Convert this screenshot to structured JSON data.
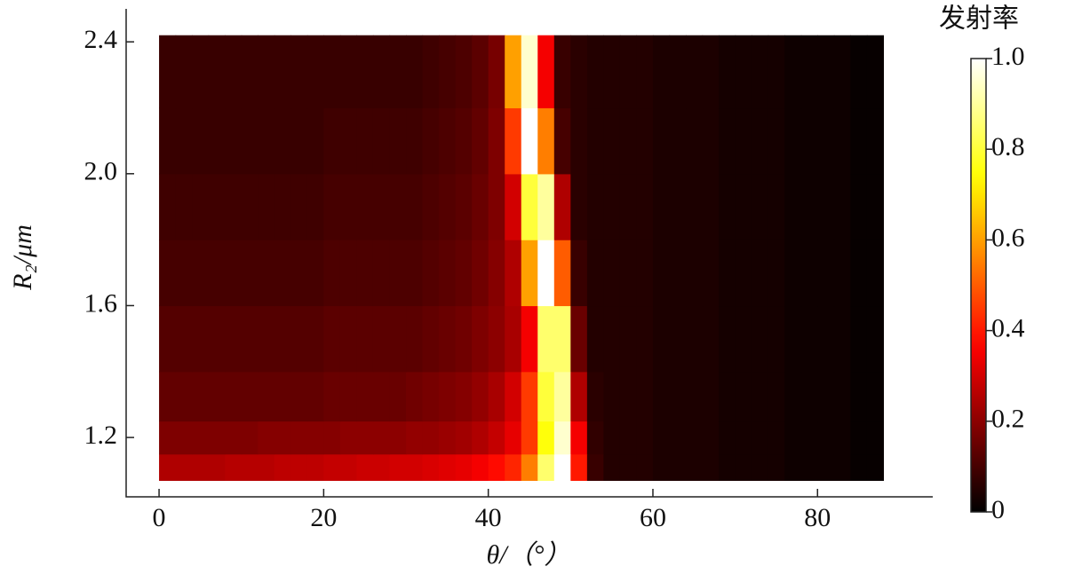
{
  "chart_data": {
    "type": "heatmap",
    "x_label": "θ/（°）",
    "y_label": "R₂/μm",
    "colorbar_title": "发射率",
    "colormap": "hot",
    "xlim": [
      -4,
      94
    ],
    "ylim": [
      1.02,
      2.5
    ],
    "xticks": [
      0,
      20,
      40,
      60,
      80
    ],
    "yticks": [
      1.2,
      1.6,
      {
        "value": 2,
        "label": "2.0"
      },
      2.4
    ],
    "clim": [
      0,
      1
    ],
    "cticks": [
      0,
      0.2,
      0.4,
      0.6,
      0.8,
      {
        "value": 1,
        "label": "1.0"
      }
    ],
    "x_edges": [
      0,
      2,
      4,
      6,
      8,
      10,
      12,
      14,
      16,
      18,
      20,
      22,
      24,
      26,
      28,
      30,
      32,
      34,
      36,
      38,
      40,
      42,
      44,
      46,
      48,
      50,
      52,
      54,
      56,
      58,
      60,
      62,
      64,
      66,
      68,
      70,
      72,
      74,
      76,
      78,
      80,
      82,
      84,
      86,
      88
    ],
    "y_edges": [
      1.07,
      1.15,
      1.25,
      1.4,
      1.6,
      1.8,
      2.0,
      2.2,
      2.42
    ],
    "z": [
      [
        0.25,
        0.25,
        0.25,
        0.25,
        0.26,
        0.26,
        0.26,
        0.27,
        0.27,
        0.27,
        0.28,
        0.28,
        0.29,
        0.29,
        0.3,
        0.3,
        0.31,
        0.32,
        0.33,
        0.35,
        0.38,
        0.42,
        0.55,
        0.85,
        1.0,
        0.4,
        0.08,
        0.05,
        0.05,
        0.05,
        0.04,
        0.04,
        0.04,
        0.04,
        0.03,
        0.03,
        0.03,
        0.03,
        0.02,
        0.02,
        0.02,
        0.02,
        0.01,
        0.01
      ],
      [
        0.18,
        0.18,
        0.18,
        0.18,
        0.18,
        0.18,
        0.19,
        0.19,
        0.19,
        0.19,
        0.19,
        0.2,
        0.2,
        0.2,
        0.2,
        0.21,
        0.21,
        0.22,
        0.23,
        0.25,
        0.28,
        0.33,
        0.45,
        0.75,
        0.95,
        0.35,
        0.07,
        0.05,
        0.05,
        0.05,
        0.04,
        0.04,
        0.04,
        0.04,
        0.03,
        0.03,
        0.03,
        0.03,
        0.02,
        0.02,
        0.02,
        0.02,
        0.01,
        0.01
      ],
      [
        0.14,
        0.14,
        0.14,
        0.14,
        0.14,
        0.14,
        0.14,
        0.14,
        0.14,
        0.14,
        0.15,
        0.15,
        0.15,
        0.15,
        0.15,
        0.16,
        0.17,
        0.18,
        0.19,
        0.21,
        0.24,
        0.3,
        0.45,
        0.8,
        0.9,
        0.25,
        0.06,
        0.05,
        0.05,
        0.05,
        0.04,
        0.04,
        0.04,
        0.04,
        0.03,
        0.03,
        0.03,
        0.03,
        0.02,
        0.02,
        0.02,
        0.02,
        0.01,
        0.01
      ],
      [
        0.12,
        0.12,
        0.12,
        0.12,
        0.12,
        0.12,
        0.12,
        0.12,
        0.12,
        0.12,
        0.13,
        0.13,
        0.13,
        0.13,
        0.13,
        0.13,
        0.14,
        0.15,
        0.16,
        0.18,
        0.2,
        0.24,
        0.35,
        0.85,
        0.85,
        0.15,
        0.05,
        0.05,
        0.05,
        0.05,
        0.04,
        0.04,
        0.04,
        0.04,
        0.03,
        0.03,
        0.03,
        0.03,
        0.02,
        0.02,
        0.02,
        0.02,
        0.01,
        0.01
      ],
      [
        0.1,
        0.1,
        0.1,
        0.1,
        0.1,
        0.1,
        0.1,
        0.1,
        0.1,
        0.1,
        0.11,
        0.11,
        0.11,
        0.11,
        0.11,
        0.11,
        0.12,
        0.13,
        0.14,
        0.16,
        0.19,
        0.25,
        0.6,
        1.0,
        0.5,
        0.08,
        0.05,
        0.05,
        0.05,
        0.05,
        0.04,
        0.04,
        0.04,
        0.04,
        0.03,
        0.03,
        0.03,
        0.03,
        0.02,
        0.02,
        0.02,
        0.02,
        0.01,
        0.01
      ],
      [
        0.09,
        0.09,
        0.09,
        0.09,
        0.09,
        0.09,
        0.09,
        0.09,
        0.09,
        0.09,
        0.1,
        0.1,
        0.1,
        0.1,
        0.1,
        0.1,
        0.11,
        0.12,
        0.13,
        0.15,
        0.18,
        0.3,
        0.8,
        0.9,
        0.25,
        0.06,
        0.05,
        0.05,
        0.05,
        0.05,
        0.04,
        0.04,
        0.04,
        0.04,
        0.03,
        0.03,
        0.03,
        0.03,
        0.02,
        0.02,
        0.02,
        0.02,
        0.01,
        0.01
      ],
      [
        0.08,
        0.08,
        0.08,
        0.08,
        0.08,
        0.08,
        0.08,
        0.08,
        0.08,
        0.08,
        0.09,
        0.09,
        0.09,
        0.09,
        0.09,
        0.09,
        0.1,
        0.11,
        0.12,
        0.14,
        0.18,
        0.45,
        1.0,
        0.55,
        0.1,
        0.06,
        0.05,
        0.05,
        0.05,
        0.05,
        0.04,
        0.04,
        0.04,
        0.04,
        0.03,
        0.03,
        0.03,
        0.03,
        0.02,
        0.02,
        0.02,
        0.02,
        0.01,
        0.01
      ],
      [
        0.08,
        0.08,
        0.08,
        0.08,
        0.08,
        0.08,
        0.08,
        0.08,
        0.08,
        0.08,
        0.08,
        0.08,
        0.08,
        0.08,
        0.08,
        0.08,
        0.09,
        0.1,
        0.11,
        0.13,
        0.17,
        0.6,
        0.95,
        0.35,
        0.08,
        0.06,
        0.05,
        0.05,
        0.05,
        0.05,
        0.04,
        0.04,
        0.04,
        0.04,
        0.03,
        0.03,
        0.03,
        0.03,
        0.02,
        0.02,
        0.02,
        0.02,
        0.01,
        0.01
      ]
    ]
  }
}
